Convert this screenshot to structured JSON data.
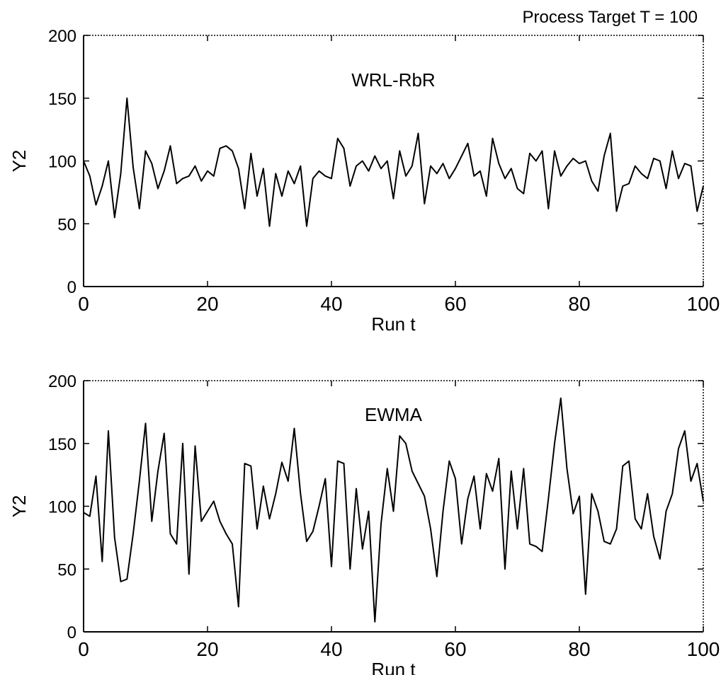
{
  "header_note": "Process Target T = 100",
  "chart_data": [
    {
      "type": "line",
      "title": "WRL-RbR",
      "xlabel": "Run t",
      "ylabel": "Y2",
      "xlim": [
        0,
        100
      ],
      "ylim": [
        0,
        200
      ],
      "xticks": [
        "0",
        "20",
        "40",
        "60",
        "80",
        "100"
      ],
      "yticks": [
        "0",
        "50",
        "100",
        "150",
        "200"
      ],
      "grid": false,
      "series": [
        {
          "x": [
            0,
            1,
            2,
            3,
            4,
            5,
            6,
            7,
            8,
            9,
            10,
            11,
            12,
            13,
            14,
            15,
            16,
            17,
            18,
            19,
            20,
            21,
            22,
            23,
            24,
            25,
            26,
            27,
            28,
            29,
            30,
            31,
            32,
            33,
            34,
            35,
            36,
            37,
            38,
            39,
            40,
            41,
            42,
            43,
            44,
            45,
            46,
            47,
            48,
            49,
            50,
            51,
            52,
            53,
            54,
            55,
            56,
            57,
            58,
            59,
            60,
            61,
            62,
            63,
            64,
            65,
            66,
            67,
            68,
            69,
            70,
            71,
            72,
            73,
            74,
            75,
            76,
            77,
            78,
            79,
            80,
            81,
            82,
            83,
            84,
            85,
            86,
            87,
            88,
            89,
            90,
            91,
            92,
            93,
            94,
            95,
            96,
            97,
            98,
            99,
            100
          ],
          "values": [
            100,
            88,
            65,
            80,
            100,
            55,
            90,
            150,
            95,
            62,
            108,
            98,
            78,
            92,
            112,
            82,
            86,
            88,
            96,
            84,
            92,
            88,
            110,
            112,
            108,
            94,
            62,
            106,
            72,
            94,
            48,
            90,
            72,
            92,
            82,
            96,
            48,
            86,
            92,
            88,
            86,
            118,
            110,
            80,
            96,
            100,
            92,
            104,
            94,
            100,
            70,
            108,
            88,
            96,
            122,
            66,
            96,
            90,
            98,
            86,
            94,
            104,
            114,
            88,
            92,
            72,
            118,
            98,
            86,
            94,
            78,
            74,
            106,
            100,
            108,
            62,
            108,
            88,
            96,
            102,
            98,
            100,
            84,
            76,
            104,
            122,
            60,
            80,
            82,
            96,
            90,
            86,
            102,
            100,
            78,
            108,
            86,
            98,
            96,
            60,
            80
          ]
        }
      ]
    },
    {
      "type": "line",
      "title": "EWMA",
      "xlabel": "Run t",
      "ylabel": "Y2",
      "xlim": [
        0,
        100
      ],
      "ylim": [
        0,
        200
      ],
      "xticks": [
        "0",
        "20",
        "40",
        "60",
        "80",
        "100"
      ],
      "yticks": [
        "0",
        "50",
        "100",
        "150",
        "200"
      ],
      "grid": false,
      "series": [
        {
          "x": [
            0,
            1,
            2,
            3,
            4,
            5,
            6,
            7,
            8,
            9,
            10,
            11,
            12,
            13,
            14,
            15,
            16,
            17,
            18,
            19,
            20,
            21,
            22,
            23,
            24,
            25,
            26,
            27,
            28,
            29,
            30,
            31,
            32,
            33,
            34,
            35,
            36,
            37,
            38,
            39,
            40,
            41,
            42,
            43,
            44,
            45,
            46,
            47,
            48,
            49,
            50,
            51,
            52,
            53,
            54,
            55,
            56,
            57,
            58,
            59,
            60,
            61,
            62,
            63,
            64,
            65,
            66,
            67,
            68,
            69,
            70,
            71,
            72,
            73,
            74,
            75,
            76,
            77,
            78,
            79,
            80,
            81,
            82,
            83,
            84,
            85,
            86,
            87,
            88,
            89,
            90,
            91,
            92,
            93,
            94,
            95,
            96,
            97,
            98,
            99,
            100
          ],
          "values": [
            95,
            92,
            124,
            56,
            160,
            75,
            40,
            42,
            78,
            120,
            166,
            88,
            128,
            158,
            78,
            70,
            150,
            46,
            148,
            88,
            96,
            104,
            88,
            78,
            70,
            20,
            134,
            132,
            82,
            116,
            90,
            110,
            135,
            120,
            162,
            110,
            72,
            80,
            100,
            122,
            52,
            136,
            134,
            50,
            114,
            66,
            96,
            8,
            86,
            130,
            96,
            156,
            150,
            128,
            118,
            108,
            82,
            44,
            96,
            136,
            122,
            70,
            106,
            124,
            82,
            126,
            112,
            138,
            50,
            128,
            82,
            130,
            70,
            68,
            64,
            106,
            150,
            186,
            130,
            94,
            108,
            30,
            110,
            96,
            72,
            70,
            82,
            132,
            136,
            90,
            82,
            110,
            76,
            58,
            96,
            110,
            146,
            160,
            120,
            134,
            104
          ]
        }
      ]
    }
  ]
}
